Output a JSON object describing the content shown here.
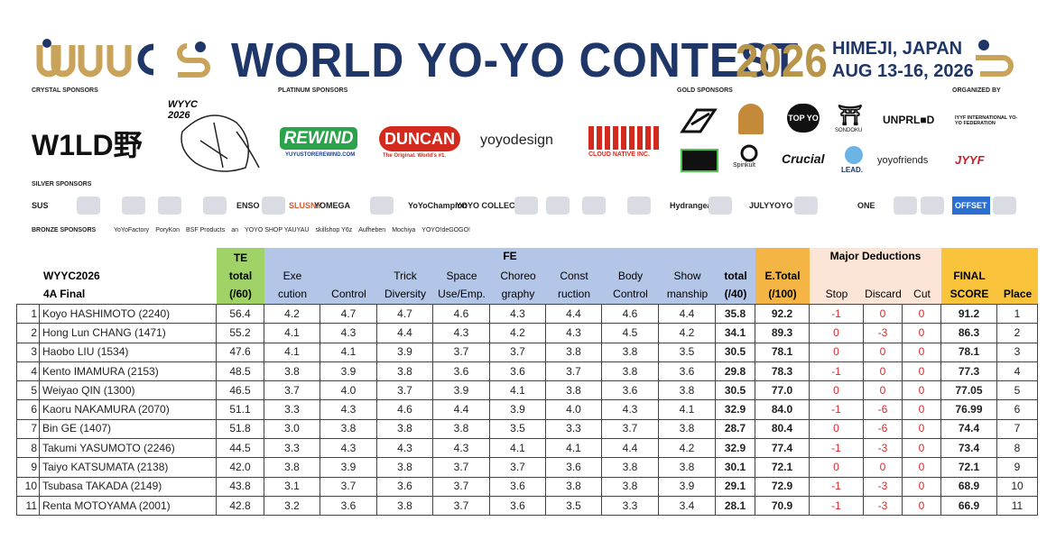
{
  "header": {
    "title": "WORLD YO-YO CONTEST",
    "year": "2026",
    "location": "HIMEJI, JAPAN",
    "dates": "AUG 13-16, 2026"
  },
  "sponsors": {
    "crystal": {
      "label": "CRYSTAL SPONSORS",
      "logos": [
        "W1LD野",
        "WYYC 2026"
      ]
    },
    "platinum": {
      "label": "PLATINUM SPONSORS",
      "logos": [
        "REWIND",
        "DUNCAN",
        "yoyodesign",
        "CLOUD NATIVE INC."
      ],
      "taglines": [
        "YUYUSTOREREWIND.COM",
        "The Original. World's #1."
      ]
    },
    "gold": {
      "label": "GOLD SPONSORS",
      "logos": [
        "TOP YO",
        "SONDOKU",
        "UNPRL■D",
        "Spinkult",
        "Crucial",
        "LEAD.",
        "yoyofriends"
      ]
    },
    "organizer": {
      "label": "ORGANIZED BY",
      "logos": [
        "IYYF INTERNATIONAL YO-YO FEDERATION",
        "JYYF"
      ]
    },
    "silver": {
      "label": "SILVER SPONSORS",
      "logos": [
        "SUS",
        "ENSO",
        "SLUSNY.",
        "YOMEGA",
        "YoYoChampion",
        "YOYO COLLECTIVE",
        "Hydrangea",
        "JULYYOYO",
        "ONE",
        "OFFSET"
      ]
    },
    "bronze": {
      "label": "BRONZE SPONSORS",
      "names": [
        "YoYoFactory",
        "PoryKon",
        "BSF Products",
        "an",
        "YOYO SHOP YAUYAU",
        "skillshop Y6z",
        "Aufheben",
        "Mochiya",
        "YOYO!deGOGO!"
      ]
    }
  },
  "table": {
    "title_lines": [
      "WYYC2026",
      "4A Final"
    ],
    "fe_label": "FE",
    "deductions_label": "Major Deductions",
    "columns": [
      [
        "TE",
        "total",
        "(/60)"
      ],
      [
        "Exe",
        "cution"
      ],
      [
        "Control"
      ],
      [
        "Trick",
        "Diversity"
      ],
      [
        "Space",
        "Use/Emp."
      ],
      [
        "Choreo",
        "graphy"
      ],
      [
        "Const",
        "ruction"
      ],
      [
        "Body",
        "Control"
      ],
      [
        "Show",
        "manship"
      ],
      [
        "total",
        "(/40)"
      ],
      [
        "E.Total",
        "(/100)"
      ],
      [
        "Stop"
      ],
      [
        "Discard"
      ],
      [
        "Cut"
      ],
      [
        "FINAL",
        "SCORE"
      ],
      [
        "Place"
      ]
    ],
    "rows": [
      [
        "1",
        "Koyo HASHIMOTO (2240)",
        "56.4",
        "4.2",
        "4.7",
        "4.7",
        "4.6",
        "4.3",
        "4.4",
        "4.6",
        "4.4",
        "35.8",
        "92.2",
        "-1",
        "0",
        "0",
        "91.2",
        "1"
      ],
      [
        "2",
        "Hong Lun CHANG (1471)",
        "55.2",
        "4.1",
        "4.3",
        "4.4",
        "4.3",
        "4.2",
        "4.3",
        "4.5",
        "4.2",
        "34.1",
        "89.3",
        "0",
        "-3",
        "0",
        "86.3",
        "2"
      ],
      [
        "3",
        "Haobo LIU (1534)",
        "47.6",
        "4.1",
        "4.1",
        "3.9",
        "3.7",
        "3.7",
        "3.8",
        "3.8",
        "3.5",
        "30.5",
        "78.1",
        "0",
        "0",
        "0",
        "78.1",
        "3"
      ],
      [
        "4",
        "Kento IMAMURA (2153)",
        "48.5",
        "3.8",
        "3.9",
        "3.8",
        "3.6",
        "3.6",
        "3.7",
        "3.8",
        "3.6",
        "29.8",
        "78.3",
        "-1",
        "0",
        "0",
        "77.3",
        "4"
      ],
      [
        "5",
        "Weiyao QIN (1300)",
        "46.5",
        "3.7",
        "4.0",
        "3.7",
        "3.9",
        "4.1",
        "3.8",
        "3.6",
        "3.8",
        "30.5",
        "77.0",
        "0",
        "0",
        "0",
        "77.05",
        "5"
      ],
      [
        "6",
        "Kaoru NAKAMURA (2070)",
        "51.1",
        "3.3",
        "4.3",
        "4.6",
        "4.4",
        "3.9",
        "4.0",
        "4.3",
        "4.1",
        "32.9",
        "84.0",
        "-1",
        "-6",
        "0",
        "76.99",
        "6"
      ],
      [
        "7",
        "Bin GE (1407)",
        "51.8",
        "3.0",
        "3.8",
        "3.8",
        "3.8",
        "3.5",
        "3.3",
        "3.7",
        "3.8",
        "28.7",
        "80.4",
        "0",
        "-6",
        "0",
        "74.4",
        "7"
      ],
      [
        "8",
        "Takumi YASUMOTO (2246)",
        "44.5",
        "3.3",
        "4.3",
        "4.3",
        "4.3",
        "4.1",
        "4.1",
        "4.4",
        "4.2",
        "32.9",
        "77.4",
        "-1",
        "-3",
        "0",
        "73.4",
        "8"
      ],
      [
        "9",
        "Taiyo KATSUMATA (2138)",
        "42.0",
        "3.8",
        "3.9",
        "3.8",
        "3.7",
        "3.7",
        "3.6",
        "3.8",
        "3.8",
        "30.1",
        "72.1",
        "0",
        "0",
        "0",
        "72.1",
        "9"
      ],
      [
        "10",
        "Tsubasa TAKADA (2149)",
        "43.8",
        "3.1",
        "3.7",
        "3.6",
        "3.7",
        "3.6",
        "3.8",
        "3.8",
        "3.9",
        "29.1",
        "72.9",
        "-1",
        "-3",
        "0",
        "68.9",
        "10"
      ],
      [
        "11",
        "Renta MOTOYAMA (2001)",
        "42.8",
        "3.2",
        "3.6",
        "3.8",
        "3.7",
        "3.6",
        "3.5",
        "3.3",
        "3.4",
        "28.1",
        "70.9",
        "-1",
        "-3",
        "0",
        "66.9",
        "11"
      ]
    ]
  }
}
